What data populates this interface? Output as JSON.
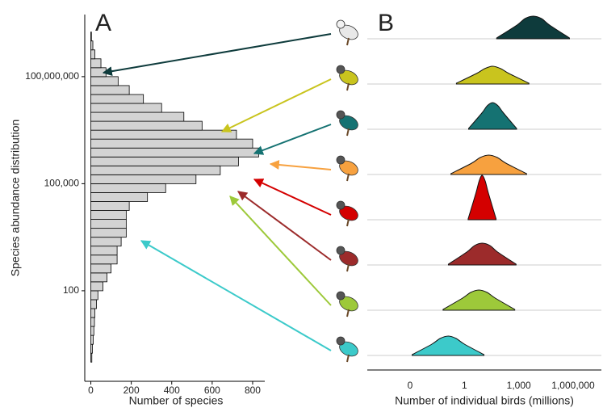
{
  "chart_data": [
    {
      "type": "histogram",
      "panel_label": "A",
      "ylabel": "Species abundance distribution",
      "xlabel": "Number of species",
      "orientation": "horizontal",
      "log_y": true,
      "color": "#d3d3d3",
      "bins": [
        1,
        1.78,
        3.16,
        5.62,
        10,
        17.8,
        31.6,
        56.2,
        100,
        178,
        316,
        562,
        1000,
        1780,
        3160,
        5620,
        10000,
        17800,
        31600,
        56200,
        100000,
        178000,
        316000,
        562000,
        1000000,
        1780000,
        3160000,
        5620000,
        10000000,
        17800000,
        31600000,
        56200000,
        100000000,
        178000000,
        316000000,
        562000000,
        1000000000,
        1780000000
      ],
      "values": [
        5,
        8,
        12,
        15,
        18,
        20,
        28,
        35,
        60,
        80,
        100,
        130,
        130,
        150,
        175,
        175,
        175,
        190,
        280,
        370,
        520,
        640,
        730,
        830,
        800,
        720,
        550,
        460,
        350,
        260,
        190,
        135,
        75,
        50,
        20,
        10,
        3
      ],
      "xlim": [
        -30,
        860
      ],
      "xticks": [
        0,
        200,
        400,
        600,
        800
      ],
      "ylim": [
        0.29,
        5500000000
      ],
      "yticks": [
        100,
        {
          "value": 100000,
          "label": "100,000"
        },
        {
          "value": 100000000,
          "label": "100,000,000"
        }
      ]
    },
    {
      "type": "ridgeline",
      "panel_label": "B",
      "xlabel": "Number of individual birds (millions)",
      "log_x": true,
      "xlim": [
        1e-05,
        100000000
      ],
      "xticks": [
        {
          "value": 0.001,
          "label": "0"
        },
        1,
        {
          "value": 1000,
          "label": "1,000"
        },
        {
          "value": 1000000,
          "label": "1,000,000"
        }
      ],
      "series": [
        {
          "color": "#0e3b3c",
          "x": [
            60,
            800,
            2200,
            6300,
            18000,
            50000,
            630000
          ],
          "values": [
            1,
            17,
            25,
            28,
            25,
            17,
            1
          ]
        },
        {
          "color": "#c9c41e",
          "x": [
            0.36,
            4.6,
            13,
            36,
            102,
            288,
            3630
          ],
          "values": [
            1,
            13,
            19,
            22,
            19,
            13,
            1
          ]
        },
        {
          "color": "#157272",
          "x": [
            1.7,
            9.1,
            18,
            36,
            72,
            145,
            760
          ],
          "values": [
            1,
            20,
            29,
            33,
            29,
            20,
            1
          ]
        },
        {
          "color": "#f7a13f",
          "x": [
            0.18,
            2.5,
            7.4,
            22,
            66,
            195,
            2700
          ],
          "values": [
            1,
            14,
            21,
            24,
            21,
            14,
            1
          ]
        },
        {
          "color": "#d40000",
          "x": [
            1.6,
            4.3,
            6.5,
            9.5,
            14,
            21,
            56
          ],
          "values": [
            1,
            33,
            48,
            55,
            48,
            33,
            1
          ]
        },
        {
          "color": "#9c2b2b",
          "x": [
            0.13,
            1.35,
            3.6,
            9.5,
            26,
            68,
            710
          ],
          "values": [
            1,
            16,
            24,
            27,
            24,
            16,
            1
          ]
        },
        {
          "color": "#9dc93a",
          "x": [
            0.066,
            0.79,
            2.2,
            6.3,
            18,
            50,
            600
          ],
          "values": [
            1,
            15,
            22,
            25,
            22,
            15,
            1
          ]
        },
        {
          "color": "#3ccaca",
          "x": [
            0.0013,
            0.016,
            0.045,
            0.13,
            0.35,
            1,
            12
          ],
          "values": [
            1,
            14,
            21,
            24,
            21,
            14,
            1
          ]
        }
      ]
    }
  ]
}
